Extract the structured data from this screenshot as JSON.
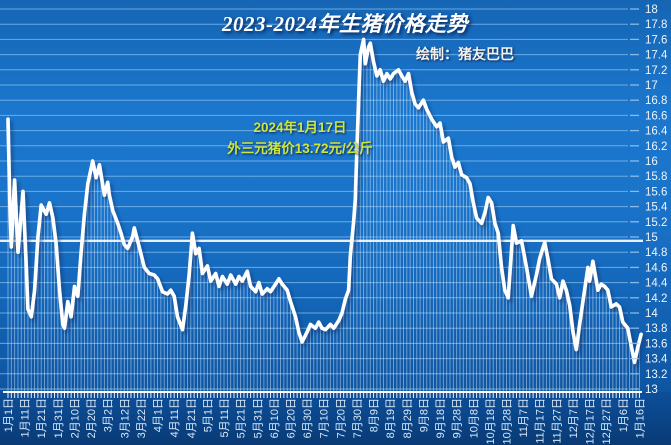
{
  "chart_data": {
    "type": "line",
    "title": "2023-2024年生猪价格走势",
    "credit": "绘制：猪友巴巴",
    "annotation": {
      "date_line": "2024年1月17日",
      "price_line": "外三元猪价13.72元/公斤"
    },
    "series_name": "外三元猪价(元/公斤)",
    "ylim": [
      13,
      18
    ],
    "y_step": 0.2,
    "days_total": 381,
    "x_tick_interval_days": 10,
    "average_line": 14.95,
    "grid": true,
    "legend_position": "none",
    "y_tick_labels": [
      "18",
      "17.8",
      "17.6",
      "17.4",
      "17.2",
      "17",
      "16.8",
      "16.6",
      "16.4",
      "16.2",
      "16",
      "15.8",
      "15.6",
      "15.4",
      "15.2",
      "15",
      "14.8",
      "14.6",
      "14.4",
      "14.2",
      "14",
      "13.8",
      "13.6",
      "13.4",
      "13.2",
      "13"
    ],
    "x_tick_labels": [
      "1月1日",
      "1月11日",
      "1月21日",
      "1月31日",
      "2月10日",
      "2月20日",
      "3月2日",
      "3月12日",
      "3月22日",
      "4月1日",
      "4月11日",
      "4月21日",
      "5月1日",
      "5月11日",
      "5月21日",
      "5月31日",
      "6月10日",
      "6月20日",
      "6月30日",
      "7月10日",
      "7月20日",
      "7月30日",
      "8月9日",
      "8月19日",
      "8月29日",
      "9月8日",
      "9月18日",
      "9月28日",
      "10月8日",
      "10月18日",
      "10月28日",
      "11月7日",
      "11月17日",
      "11月27日",
      "12月7日",
      "12月17日",
      "12月27日",
      "1月6日",
      "1月16日"
    ],
    "series_points": [
      [
        0,
        16.55
      ],
      [
        1,
        15.5
      ],
      [
        2,
        14.87
      ],
      [
        4,
        15.75
      ],
      [
        6,
        14.8
      ],
      [
        9,
        15.6
      ],
      [
        11,
        14.6
      ],
      [
        12,
        14.05
      ],
      [
        14,
        13.95
      ],
      [
        16,
        14.3
      ],
      [
        18,
        15.0
      ],
      [
        20,
        15.42
      ],
      [
        23,
        15.3
      ],
      [
        25,
        15.45
      ],
      [
        27,
        15.25
      ],
      [
        29,
        14.9
      ],
      [
        31,
        14.3
      ],
      [
        33,
        13.85
      ],
      [
        34,
        13.8
      ],
      [
        36,
        14.15
      ],
      [
        38,
        13.95
      ],
      [
        40,
        14.35
      ],
      [
        42,
        14.22
      ],
      [
        44,
        14.8
      ],
      [
        46,
        15.3
      ],
      [
        48,
        15.7
      ],
      [
        51,
        16.0
      ],
      [
        53,
        15.78
      ],
      [
        55,
        15.95
      ],
      [
        58,
        15.55
      ],
      [
        60,
        15.72
      ],
      [
        61,
        15.55
      ],
      [
        63,
        15.35
      ],
      [
        66,
        15.18
      ],
      [
        68,
        15.05
      ],
      [
        70,
        14.9
      ],
      [
        72,
        14.85
      ],
      [
        75,
        15.0
      ],
      [
        76,
        15.12
      ],
      [
        78,
        14.95
      ],
      [
        80,
        14.78
      ],
      [
        82,
        14.6
      ],
      [
        85,
        14.52
      ],
      [
        88,
        14.5
      ],
      [
        90,
        14.45
      ],
      [
        93,
        14.28
      ],
      [
        96,
        14.25
      ],
      [
        98,
        14.3
      ],
      [
        100,
        14.22
      ],
      [
        102,
        13.95
      ],
      [
        105,
        13.78
      ],
      [
        107,
        14.1
      ],
      [
        109,
        14.5
      ],
      [
        111,
        15.05
      ],
      [
        113,
        14.78
      ],
      [
        115,
        14.85
      ],
      [
        117,
        14.52
      ],
      [
        120,
        14.62
      ],
      [
        122,
        14.42
      ],
      [
        125,
        14.52
      ],
      [
        127,
        14.35
      ],
      [
        129,
        14.48
      ],
      [
        132,
        14.38
      ],
      [
        134,
        14.5
      ],
      [
        137,
        14.38
      ],
      [
        139,
        14.48
      ],
      [
        141,
        14.42
      ],
      [
        144,
        14.55
      ],
      [
        146,
        14.35
      ],
      [
        149,
        14.28
      ],
      [
        151,
        14.4
      ],
      [
        153,
        14.25
      ],
      [
        156,
        14.32
      ],
      [
        158,
        14.28
      ],
      [
        161,
        14.38
      ],
      [
        163,
        14.45
      ],
      [
        165,
        14.38
      ],
      [
        168,
        14.3
      ],
      [
        170,
        14.15
      ],
      [
        173,
        13.95
      ],
      [
        175,
        13.75
      ],
      [
        177,
        13.62
      ],
      [
        180,
        13.75
      ],
      [
        182,
        13.85
      ],
      [
        185,
        13.8
      ],
      [
        187,
        13.88
      ],
      [
        189,
        13.8
      ],
      [
        191,
        13.78
      ],
      [
        194,
        13.85
      ],
      [
        196,
        13.8
      ],
      [
        199,
        13.9
      ],
      [
        201,
        14.0
      ],
      [
        203,
        14.18
      ],
      [
        205,
        14.3
      ],
      [
        206,
        14.75
      ],
      [
        208,
        15.2
      ],
      [
        209,
        15.5
      ],
      [
        210,
        16.2
      ],
      [
        211,
        16.8
      ],
      [
        212,
        17.4
      ],
      [
        214,
        17.6
      ],
      [
        215,
        17.28
      ],
      [
        217,
        17.5
      ],
      [
        218,
        17.55
      ],
      [
        220,
        17.3
      ],
      [
        222,
        17.12
      ],
      [
        224,
        17.2
      ],
      [
        226,
        17.05
      ],
      [
        228,
        17.15
      ],
      [
        230,
        17.08
      ],
      [
        232,
        17.15
      ],
      [
        235,
        17.2
      ],
      [
        237,
        17.12
      ],
      [
        239,
        17.05
      ],
      [
        241,
        17.15
      ],
      [
        243,
        16.9
      ],
      [
        245,
        16.75
      ],
      [
        247,
        16.7
      ],
      [
        250,
        16.8
      ],
      [
        252,
        16.68
      ],
      [
        255,
        16.55
      ],
      [
        258,
        16.45
      ],
      [
        260,
        16.5
      ],
      [
        262,
        16.25
      ],
      [
        265,
        16.3
      ],
      [
        267,
        16.05
      ],
      [
        269,
        15.92
      ],
      [
        271,
        15.98
      ],
      [
        273,
        15.82
      ],
      [
        276,
        15.78
      ],
      [
        278,
        15.7
      ],
      [
        280,
        15.45
      ],
      [
        282,
        15.25
      ],
      [
        285,
        15.18
      ],
      [
        287,
        15.32
      ],
      [
        289,
        15.52
      ],
      [
        291,
        15.45
      ],
      [
        293,
        15.18
      ],
      [
        295,
        15.05
      ],
      [
        297,
        14.6
      ],
      [
        299,
        14.3
      ],
      [
        301,
        14.2
      ],
      [
        304,
        15.15
      ],
      [
        306,
        14.92
      ],
      [
        309,
        14.95
      ],
      [
        312,
        14.6
      ],
      [
        314,
        14.35
      ],
      [
        315,
        14.22
      ],
      [
        318,
        14.5
      ],
      [
        320,
        14.72
      ],
      [
        323,
        14.93
      ],
      [
        325,
        14.7
      ],
      [
        327,
        14.45
      ],
      [
        330,
        14.38
      ],
      [
        332,
        14.2
      ],
      [
        334,
        14.42
      ],
      [
        336,
        14.3
      ],
      [
        338,
        14.1
      ],
      [
        340,
        13.75
      ],
      [
        342,
        13.52
      ],
      [
        344,
        13.85
      ],
      [
        346,
        14.15
      ],
      [
        349,
        14.6
      ],
      [
        350,
        14.42
      ],
      [
        352,
        14.68
      ],
      [
        355,
        14.3
      ],
      [
        357,
        14.38
      ],
      [
        359,
        14.35
      ],
      [
        361,
        14.3
      ],
      [
        363,
        14.08
      ],
      [
        366,
        14.12
      ],
      [
        368,
        14.08
      ],
      [
        370,
        13.88
      ],
      [
        373,
        13.8
      ],
      [
        374,
        13.68
      ],
      [
        377,
        13.35
      ],
      [
        379,
        13.55
      ],
      [
        381,
        13.72
      ]
    ],
    "colors": {
      "line": "#ffffff",
      "drop_lines": "rgba(228,242,255,0.5)",
      "gridline": "rgba(125,188,238,0.8)",
      "y_label": "#eef5fd",
      "x_label": "#d8e8f8",
      "annotation_text": "#cfe63a",
      "title_text": "#ffffff",
      "average_line": "#f4f9ff"
    }
  }
}
